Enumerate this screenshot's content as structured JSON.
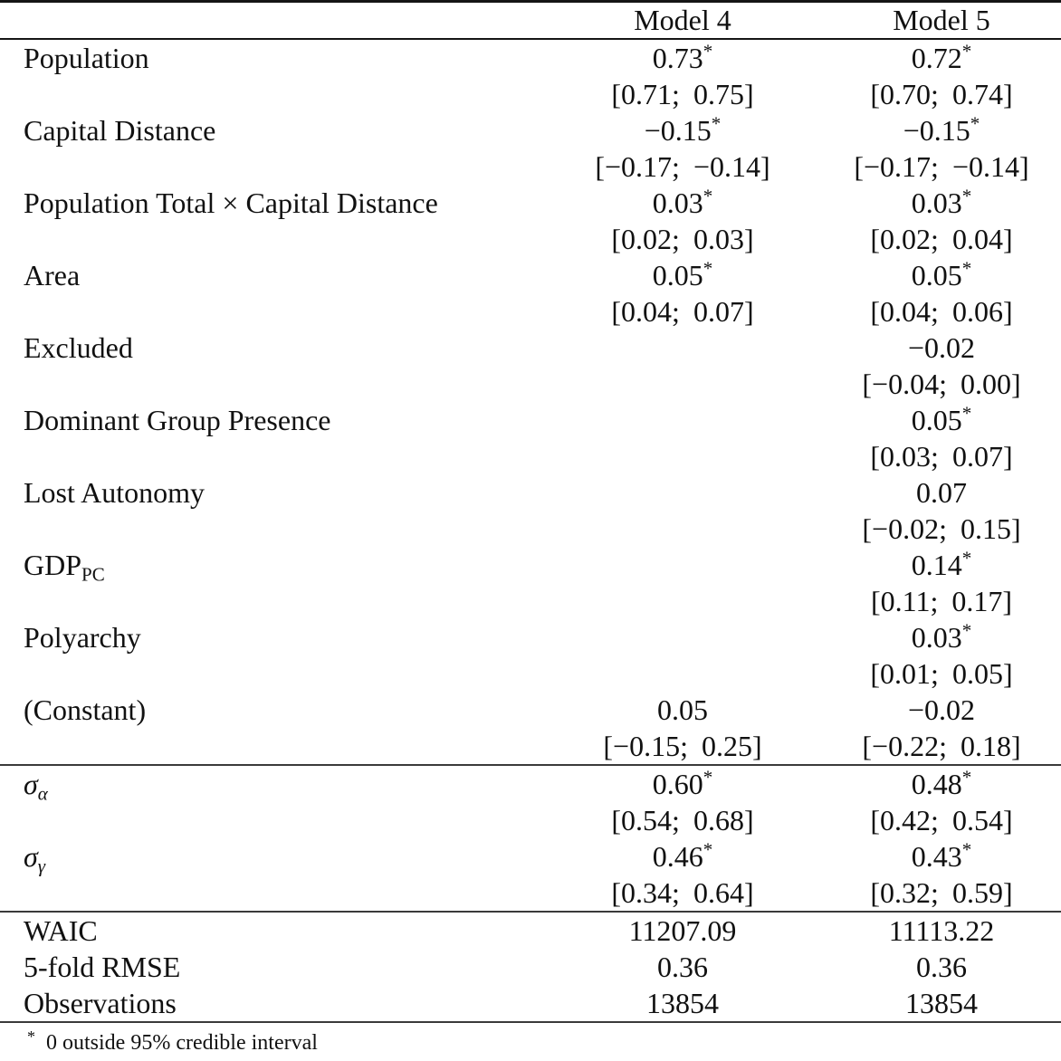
{
  "table": {
    "header": {
      "label": "",
      "col1": "Model 4",
      "col2": "Model 5"
    },
    "rows": [
      {
        "id": "population",
        "label": "Population",
        "m4": "0.73",
        "m4_star": "*",
        "m4_ci": "[0.71; 0.75]",
        "m5": "0.72",
        "m5_star": "*",
        "m5_ci": "[0.70; 0.74]"
      },
      {
        "id": "capital-distance",
        "label": "Capital Distance",
        "m4": "−0.15",
        "m4_star": "*",
        "m4_ci": "[−0.17; −0.14]",
        "m5": "−0.15",
        "m5_star": "*",
        "m5_ci": "[−0.17; −0.14]"
      },
      {
        "id": "population-total-x-capital-distance",
        "label": "Population Total × Capital Distance",
        "m4": "0.03",
        "m4_star": "*",
        "m4_ci": "[0.02; 0.03]",
        "m5": "0.03",
        "m5_star": "*",
        "m5_ci": "[0.02; 0.04]"
      },
      {
        "id": "area",
        "label": "Area",
        "m4": "0.05",
        "m4_star": "*",
        "m4_ci": "[0.04; 0.07]",
        "m5": "0.05",
        "m5_star": "*",
        "m5_ci": "[0.04; 0.06]"
      },
      {
        "id": "excluded",
        "label": "Excluded",
        "m5": "−0.02",
        "m5_ci": "[−0.04; 0.00]"
      },
      {
        "id": "dominant-group-presence",
        "label": "Dominant Group Presence",
        "m5": "0.05",
        "m5_star": "*",
        "m5_ci": "[0.03; 0.07]"
      },
      {
        "id": "lost-autonomy",
        "label": "Lost Autonomy",
        "m5": "0.07",
        "m5_ci": "[−0.02; 0.15]"
      },
      {
        "id": "gdp-pc",
        "label": "GDP",
        "label_sub": "PC",
        "m5": "0.14",
        "m5_star": "*",
        "m5_ci": "[0.11; 0.17]"
      },
      {
        "id": "polyarchy",
        "label": "Polyarchy",
        "m5": "0.03",
        "m5_star": "*",
        "m5_ci": "[0.01; 0.05]"
      },
      {
        "id": "constant",
        "label": "(Constant)",
        "m4": "0.05",
        "m4_ci": "[−0.15; 0.25]",
        "m5": "−0.02",
        "m5_ci": "[−0.22; 0.18]"
      },
      {
        "id": "sigma-alpha",
        "label": "σ",
        "label_sub": "α",
        "italic": true,
        "section": "variance",
        "m4": "0.60",
        "m4_star": "*",
        "m4_ci": "[0.54; 0.68]",
        "m5": "0.48",
        "m5_star": "*",
        "m5_ci": "[0.42; 0.54]"
      },
      {
        "id": "sigma-gamma",
        "label": "σ",
        "label_sub": "γ",
        "italic": true,
        "m4": "0.46",
        "m4_star": "*",
        "m4_ci": "[0.34; 0.64]",
        "m5": "0.43",
        "m5_star": "*",
        "m5_ci": "[0.32; 0.59]"
      },
      {
        "id": "waic",
        "label": "WAIC",
        "section": "gof",
        "m4": "11207.09",
        "m5": "11113.22"
      },
      {
        "id": "rmse",
        "label": "5-fold RMSE",
        "m4": "0.36",
        "m5": "0.36"
      },
      {
        "id": "observations",
        "label": "Observations",
        "m4": "13854",
        "m5": "13854"
      }
    ],
    "footnote": {
      "marker": "*",
      "text": "0 outside 95% credible interval"
    }
  }
}
